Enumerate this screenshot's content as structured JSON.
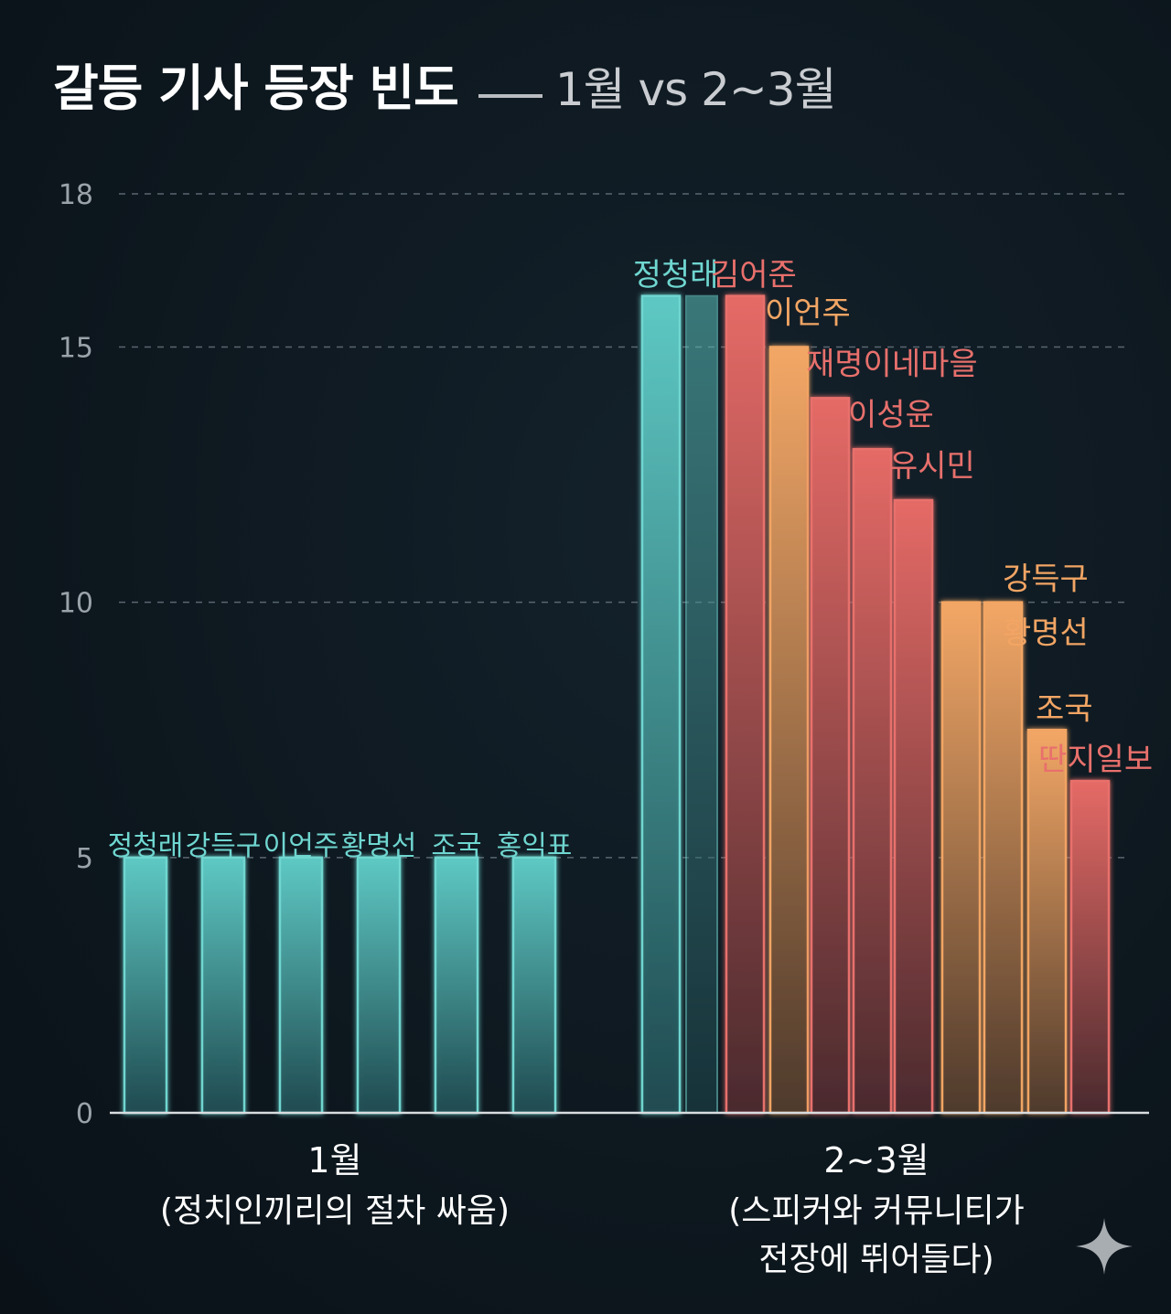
{
  "title": {
    "main": "갈등 기사 등장 빈도",
    "sub": "1월 vs 2~3월"
  },
  "colors": {
    "teal": "#6fd6d0",
    "red": "#e8706c",
    "orange": "#f2a564",
    "grid": "#5a6670",
    "axis": "#d8dcdf",
    "tick": "#9aa3aa"
  },
  "icons": [
    "sparkle-icon"
  ],
  "chart_data": {
    "type": "bar",
    "ylim": [
      0,
      18
    ],
    "yticks": [
      0,
      5,
      10,
      15,
      18
    ],
    "grid": true,
    "groups": [
      {
        "label": "1월",
        "caption": [
          "(정치인끼리의 절차 싸움)"
        ],
        "bars": [
          {
            "name": "정청래",
            "value": 5,
            "color": "teal"
          },
          {
            "name": "강득구",
            "value": 5,
            "color": "teal"
          },
          {
            "name": "이언주",
            "value": 5,
            "color": "teal"
          },
          {
            "name": "황명선",
            "value": 5,
            "color": "teal"
          },
          {
            "name": "조국",
            "value": 5,
            "color": "teal"
          },
          {
            "name": "홍익표",
            "value": 5,
            "color": "teal"
          }
        ]
      },
      {
        "label": "2~3월",
        "caption": [
          "(스피커와 커뮤니티가",
          "전장에 뛰어들다)"
        ],
        "bars": [
          {
            "name": "정청래",
            "value": 16,
            "color": "teal"
          },
          {
            "name": "김어준",
            "value": 16,
            "color": "red"
          },
          {
            "name": "이언주",
            "value": 15,
            "color": "orange"
          },
          {
            "name": "재명이네마을",
            "value": 14,
            "color": "red"
          },
          {
            "name": "이성윤",
            "value": 13,
            "color": "red"
          },
          {
            "name": "유시민",
            "value": 12,
            "color": "red"
          },
          {
            "name": "강득구",
            "value": 10,
            "color": "orange"
          },
          {
            "name": "황명선",
            "value": 10,
            "color": "orange"
          },
          {
            "name": "조국",
            "value": 7.5,
            "color": "orange"
          },
          {
            "name": "딴지일보",
            "value": 6.5,
            "color": "red"
          }
        ]
      }
    ]
  }
}
